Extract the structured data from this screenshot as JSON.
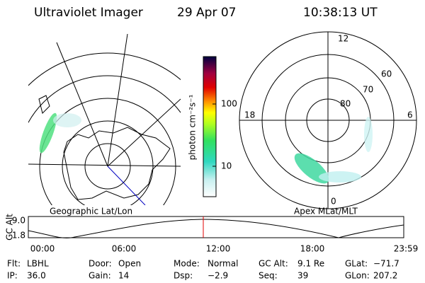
{
  "header": {
    "title": "Ultraviolet Imager",
    "date": "29 Apr 07",
    "time": "10:38:13 UT"
  },
  "left_map": {
    "label": "Geographic Lat/Lon"
  },
  "colorbar": {
    "label": "photon cm⁻²s⁻¹",
    "ticks": [
      "100",
      "10"
    ]
  },
  "right_map": {
    "label": "Apex MLat/MLT",
    "mlt_labels": [
      "12",
      "18",
      "6",
      "0"
    ],
    "lat_labels": [
      "60",
      "70",
      "80"
    ]
  },
  "altitude_plot": {
    "ylabel": "GC Alt",
    "yticks": [
      "9.0",
      "1.8"
    ],
    "xticks": [
      "00:00",
      "06:00",
      "12:00",
      "18:00",
      "23:59"
    ]
  },
  "status": [
    [
      {
        "label": "Flt:",
        "value": "LBHL"
      },
      {
        "label": "Door:",
        "value": "Open"
      },
      {
        "label": "Mode:",
        "value": "Normal"
      },
      {
        "label": "GC Alt:",
        "value": "9.1 Re"
      },
      {
        "label": "GLat:",
        "value": "−71.7"
      }
    ],
    [
      {
        "label": "IP:",
        "value": "36.0"
      },
      {
        "label": "Gain:",
        "value": "14"
      },
      {
        "label": "Dsp:",
        "value": "−2.9"
      },
      {
        "label": "Seq:",
        "value": "39"
      },
      {
        "label": "GLon:",
        "value": "207.2"
      }
    ]
  ]
}
